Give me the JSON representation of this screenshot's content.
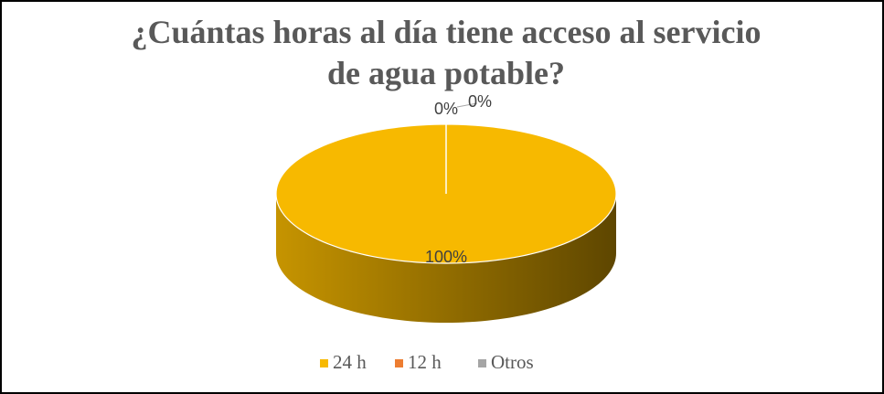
{
  "chart_data": {
    "type": "pie",
    "title": "¿Cuántas horas al día tiene acceso al servicio de agua potable?",
    "title_lines": [
      "¿Cuántas horas al día tiene acceso al servicio",
      "de agua potable?"
    ],
    "categories": [
      "24 h",
      "12 h",
      "Otros"
    ],
    "values": [
      100,
      0,
      0
    ],
    "value_labels": [
      "100%",
      "0%",
      "0%"
    ],
    "colors": [
      "#F7B900",
      "#ED7D31",
      "#A5A5A5"
    ],
    "legend": "bottom"
  }
}
